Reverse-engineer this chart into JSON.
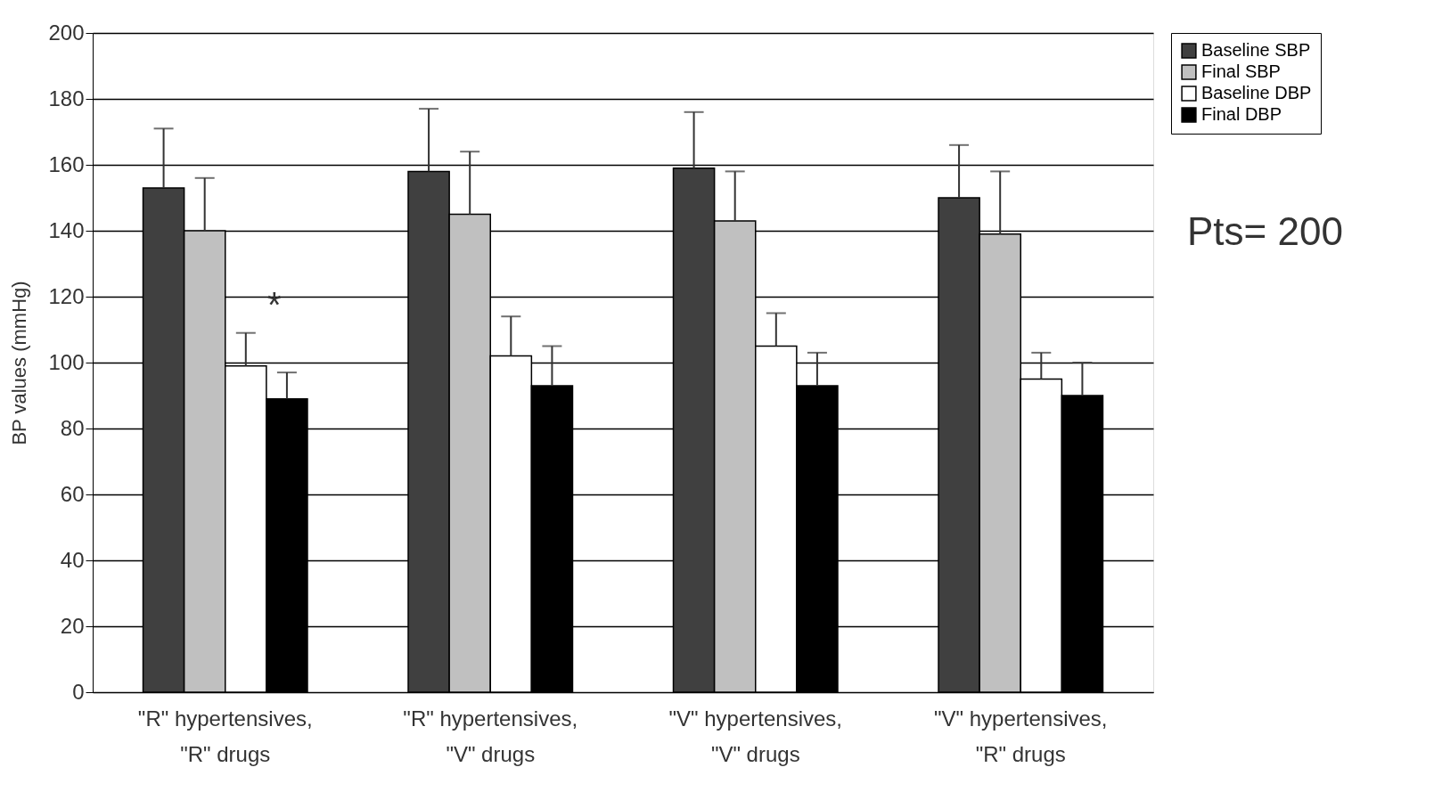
{
  "chart_data": {
    "type": "bar",
    "ylabel": "BP values (mmHg)",
    "categories": [
      "\"R\" hypertensives,\n\"R\" drugs",
      "\"R\" hypertensives,\n\"V\" drugs",
      "\"V\" hypertensives,\n\"V\" drugs",
      "\"V\" hypertensives,\n\"R\" drugs"
    ],
    "series": [
      {
        "name": "Baseline SBP",
        "color": "#404040",
        "values": [
          153,
          158,
          159,
          150
        ],
        "errors": [
          [
            153,
            171
          ],
          [
            158,
            177
          ],
          [
            159,
            176
          ],
          [
            150,
            166
          ]
        ]
      },
      {
        "name": "Final SBP",
        "color": "#c0c0c0",
        "values": [
          140,
          145,
          143,
          139
        ],
        "errors": [
          [
            140,
            156
          ],
          [
            145,
            164
          ],
          [
            143,
            158
          ],
          [
            139,
            158
          ]
        ]
      },
      {
        "name": "Baseline DBP",
        "color": "#ffffff",
        "values": [
          99,
          102,
          105,
          95
        ],
        "errors": [
          [
            99,
            109
          ],
          [
            102,
            114
          ],
          [
            105,
            115
          ],
          [
            95,
            103
          ]
        ]
      },
      {
        "name": "Final DBP",
        "color": "#000000",
        "values": [
          89,
          93,
          93,
          90
        ],
        "errors": [
          [
            89,
            97
          ],
          [
            93,
            105
          ],
          [
            93,
            103
          ],
          [
            90,
            100
          ]
        ]
      }
    ],
    "ylim": [
      0,
      200
    ],
    "yticks": [
      0,
      20,
      40,
      60,
      80,
      100,
      120,
      140,
      160,
      180,
      200
    ],
    "grid": "y",
    "legend": "right",
    "annotations": [
      {
        "text": "*",
        "x": "\"R\" hypertensives,\n\"R\" drugs",
        "y": 117
      },
      "Pts= 200"
    ]
  }
}
